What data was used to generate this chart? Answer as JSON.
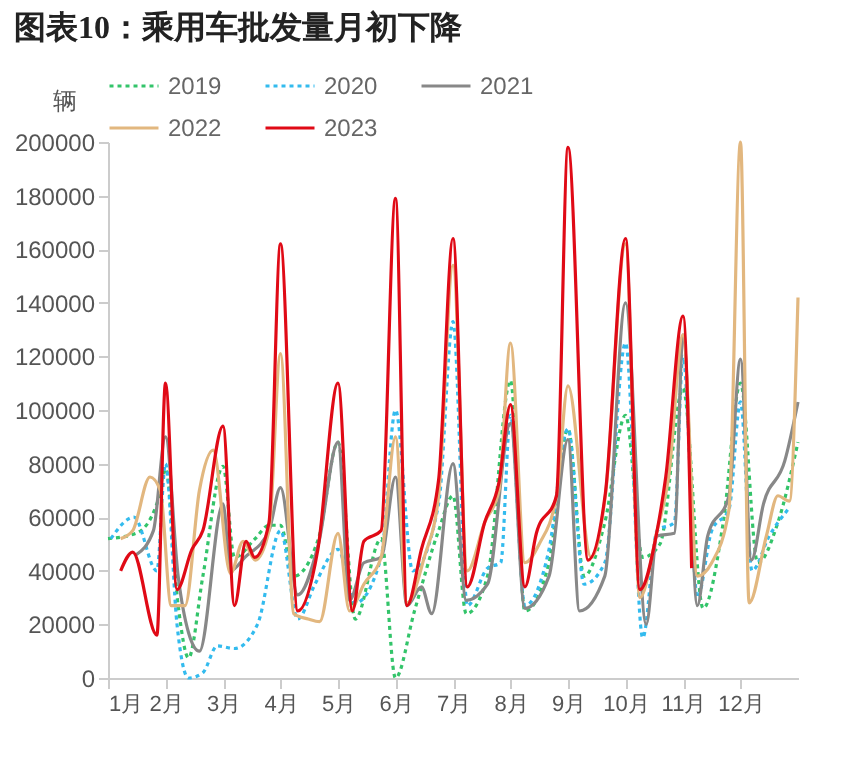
{
  "chart_data": {
    "type": "line",
    "title": "图表10：乘用车批发量月初下降",
    "ylabel": "辆",
    "xlim": [
      1,
      13
    ],
    "xticks": [
      {
        "value": 1,
        "label": "1月"
      },
      {
        "value": 2,
        "label": "2月"
      },
      {
        "value": 3,
        "label": "3月"
      },
      {
        "value": 4,
        "label": "4月"
      },
      {
        "value": 5,
        "label": "5月"
      },
      {
        "value": 6,
        "label": "6月"
      },
      {
        "value": 7,
        "label": "7月"
      },
      {
        "value": 8,
        "label": "8月"
      },
      {
        "value": 9,
        "label": "9月"
      },
      {
        "value": 10,
        "label": "10月"
      },
      {
        "value": 11,
        "label": "11月"
      },
      {
        "value": 12,
        "label": "12月"
      }
    ],
    "ylim": [
      0,
      200000
    ],
    "yticks": [
      0,
      20000,
      40000,
      60000,
      80000,
      100000,
      120000,
      140000,
      160000,
      180000,
      200000
    ],
    "legend": "top",
    "grid": false,
    "marker": "none",
    "series": [
      {
        "name": "2019",
        "color": "#33c46a",
        "line_style": "dotted",
        "x": [
          1.0,
          1.49,
          1.85,
          2.0,
          2.22,
          2.4,
          2.65,
          3.0,
          3.2,
          3.56,
          3.8,
          4.0,
          4.23,
          4.66,
          5.0,
          5.3,
          5.75,
          6.0,
          6.33,
          6.75,
          7.0,
          7.23,
          7.6,
          8.0,
          8.25,
          8.67,
          9.0,
          9.28,
          9.64,
          10.0,
          10.3,
          10.6,
          11.0,
          11.35,
          11.7,
          12.0,
          12.3,
          12.65,
          13.0
        ],
        "values": [
          52000,
          54000,
          65000,
          78000,
          27000,
          7500,
          38000,
          79000,
          45000,
          52000,
          57000,
          57000,
          38000,
          52000,
          88000,
          22000,
          52000,
          0,
          25000,
          55000,
          68000,
          24000,
          38000,
          111000,
          25000,
          43000,
          93000,
          38000,
          58000,
          98000,
          45000,
          50000,
          108000,
          26000,
          58000,
          110000,
          43000,
          58000,
          88000
        ]
      },
      {
        "name": "2020",
        "color": "#33bbee",
        "line_style": "dotted",
        "x": [
          1.05,
          1.45,
          1.85,
          2.0,
          2.2,
          2.4,
          2.65,
          2.9,
          3.2,
          3.6,
          4.0,
          4.3,
          4.6,
          5.0,
          5.3,
          5.75,
          6.0,
          6.3,
          6.75,
          7.0,
          7.25,
          7.6,
          7.83,
          8.0,
          8.25,
          8.67,
          9.0,
          9.28,
          9.64,
          10.0,
          10.3,
          10.55,
          10.85,
          11.0,
          11.25,
          11.5,
          11.8,
          12.0,
          12.2,
          12.5,
          12.83
        ],
        "values": [
          52000,
          60000,
          40000,
          80000,
          20000,
          0,
          2000,
          12000,
          11000,
          20000,
          55000,
          22000,
          35000,
          48000,
          28000,
          45000,
          100000,
          40000,
          65000,
          133000,
          27000,
          41000,
          43000,
          98000,
          27000,
          48000,
          93000,
          35000,
          43000,
          125000,
          15000,
          55000,
          58000,
          120000,
          30000,
          55000,
          63000,
          103000,
          40000,
          53000,
          63000
        ]
      },
      {
        "name": "2021",
        "color": "#888888",
        "line_style": "solid",
        "x": [
          1.49,
          1.79,
          2.0,
          2.22,
          2.4,
          2.59,
          3.0,
          3.13,
          3.38,
          3.8,
          4.0,
          4.3,
          4.66,
          5.0,
          5.2,
          5.45,
          5.75,
          6.0,
          6.2,
          6.45,
          6.63,
          7.0,
          7.23,
          7.6,
          8.0,
          8.25,
          8.67,
          9.0,
          9.2,
          9.64,
          10.0,
          10.36,
          10.55,
          10.85,
          11.0,
          11.25,
          11.43,
          11.8,
          12.0,
          12.19,
          12.4,
          12.77,
          13.0
        ],
        "values": [
          46000,
          55000,
          90000,
          38000,
          17000,
          10000,
          65000,
          40000,
          45000,
          55000,
          71000,
          31000,
          50000,
          88000,
          29000,
          43000,
          45000,
          75000,
          27000,
          34000,
          24000,
          80000,
          29000,
          35000,
          95000,
          26000,
          38000,
          89000,
          25000,
          38000,
          140000,
          20000,
          53000,
          54000,
          128000,
          27000,
          53000,
          68000,
          119000,
          44000,
          65000,
          81000,
          103000
        ]
      },
      {
        "name": "2022",
        "color": "#e2b77f",
        "line_style": "solid",
        "x": [
          1.22,
          1.43,
          1.73,
          1.91,
          2.1,
          2.34,
          2.59,
          2.83,
          3.13,
          3.35,
          3.56,
          3.8,
          4.0,
          4.23,
          4.48,
          4.68,
          5.0,
          5.2,
          5.45,
          5.75,
          6.0,
          6.2,
          6.5,
          6.75,
          7.0,
          7.25,
          7.55,
          7.8,
          8.0,
          8.25,
          8.5,
          8.8,
          9.0,
          9.4,
          9.65,
          10.0,
          10.25,
          10.55,
          10.75,
          11.0,
          11.25,
          11.5,
          11.8,
          12.0,
          12.15,
          12.45,
          12.65,
          12.85,
          13.0
        ],
        "values": [
          52000,
          55000,
          75000,
          70000,
          27000,
          27000,
          70000,
          85000,
          39000,
          51000,
          44000,
          55000,
          121000,
          24000,
          22000,
          21000,
          54000,
          25000,
          35000,
          45000,
          90000,
          28000,
          45000,
          68000,
          154000,
          40000,
          58000,
          70000,
          125000,
          43000,
          50000,
          68000,
          109000,
          45000,
          68000,
          162000,
          30000,
          55000,
          75000,
          128000,
          38000,
          43000,
          63000,
          200000,
          28000,
          53000,
          68000,
          66000,
          142000
        ]
      },
      {
        "name": "2023",
        "color": "#e00a16",
        "line_style": "solid",
        "x": [
          1.22,
          1.43,
          1.85,
          2.0,
          2.2,
          2.46,
          2.65,
          3.0,
          3.2,
          3.4,
          3.55,
          3.8,
          4.0,
          4.3,
          4.65,
          5.0,
          5.25,
          5.45,
          5.75,
          6.0,
          6.2,
          6.45,
          6.75,
          7.0,
          7.25,
          7.55,
          7.8,
          8.0,
          8.25,
          8.45,
          8.8,
          9.0,
          9.35,
          9.65,
          10.0,
          10.25,
          10.55,
          10.7,
          11.0,
          11.15
        ],
        "values": [
          40000,
          47000,
          16000,
          110000,
          33000,
          48000,
          55000,
          94000,
          27000,
          51000,
          45000,
          58000,
          162000,
          25000,
          48000,
          110000,
          25000,
          51000,
          55000,
          179000,
          27000,
          48000,
          74000,
          164000,
          34000,
          58000,
          73000,
          102000,
          34000,
          54000,
          68000,
          198000,
          44000,
          69000,
          164000,
          33000,
          55000,
          75000,
          135000,
          41000
        ]
      }
    ]
  }
}
